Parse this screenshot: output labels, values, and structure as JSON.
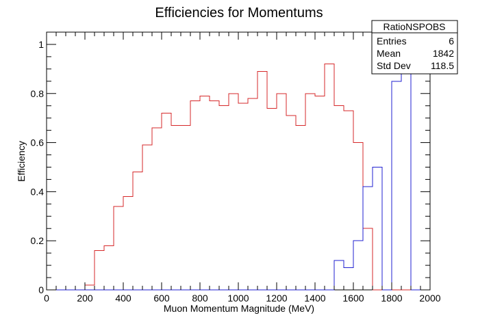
{
  "chart_data": {
    "type": "histogram",
    "title": "Efficiencies for Momentums",
    "xlabel": "Muon Momentum Magnitude (MeV)",
    "ylabel": "Efficiency",
    "xlim": [
      0,
      2000
    ],
    "ylim": [
      0,
      1.05
    ],
    "x_ticks": [
      "0",
      "200",
      "400",
      "600",
      "800",
      "1000",
      "1200",
      "1400",
      "1600",
      "1800",
      "2000"
    ],
    "y_ticks": [
      "0",
      "0.2",
      "0.4",
      "0.6",
      "0.8",
      "1"
    ],
    "bin_width": 50,
    "series": [
      {
        "color": "#d62728",
        "bin_start": 0,
        "values": [
          0,
          0,
          0,
          0,
          0.02,
          0.16,
          0.18,
          0.34,
          0.38,
          0.48,
          0.59,
          0.66,
          0.72,
          0.67,
          0.67,
          0.77,
          0.79,
          0.77,
          0.75,
          0.8,
          0.76,
          0.78,
          0.89,
          0.74,
          0.8,
          0.71,
          0.67,
          0.8,
          0.79,
          0.92,
          0.75,
          0.73,
          0.6,
          0.25,
          0,
          0,
          0,
          0,
          0,
          0
        ]
      },
      {
        "color": "#1f1fd0",
        "bin_start": 0,
        "values": [
          0,
          0,
          0,
          0,
          0,
          0,
          0,
          0,
          0,
          0,
          0,
          0,
          0,
          0,
          0,
          0,
          0,
          0,
          0,
          0,
          0,
          0,
          0,
          0,
          0,
          0,
          0,
          0,
          0,
          0,
          0.12,
          0.09,
          0.2,
          0.42,
          0.5,
          0,
          0.85,
          0.89,
          0,
          0
        ]
      }
    ],
    "stats": {
      "name": "RatioNSPOBS",
      "rows": [
        {
          "label": "Entries",
          "value": "6"
        },
        {
          "label": "Mean",
          "value": "1842"
        },
        {
          "label": "Std Dev",
          "value": "118.5"
        }
      ]
    }
  }
}
